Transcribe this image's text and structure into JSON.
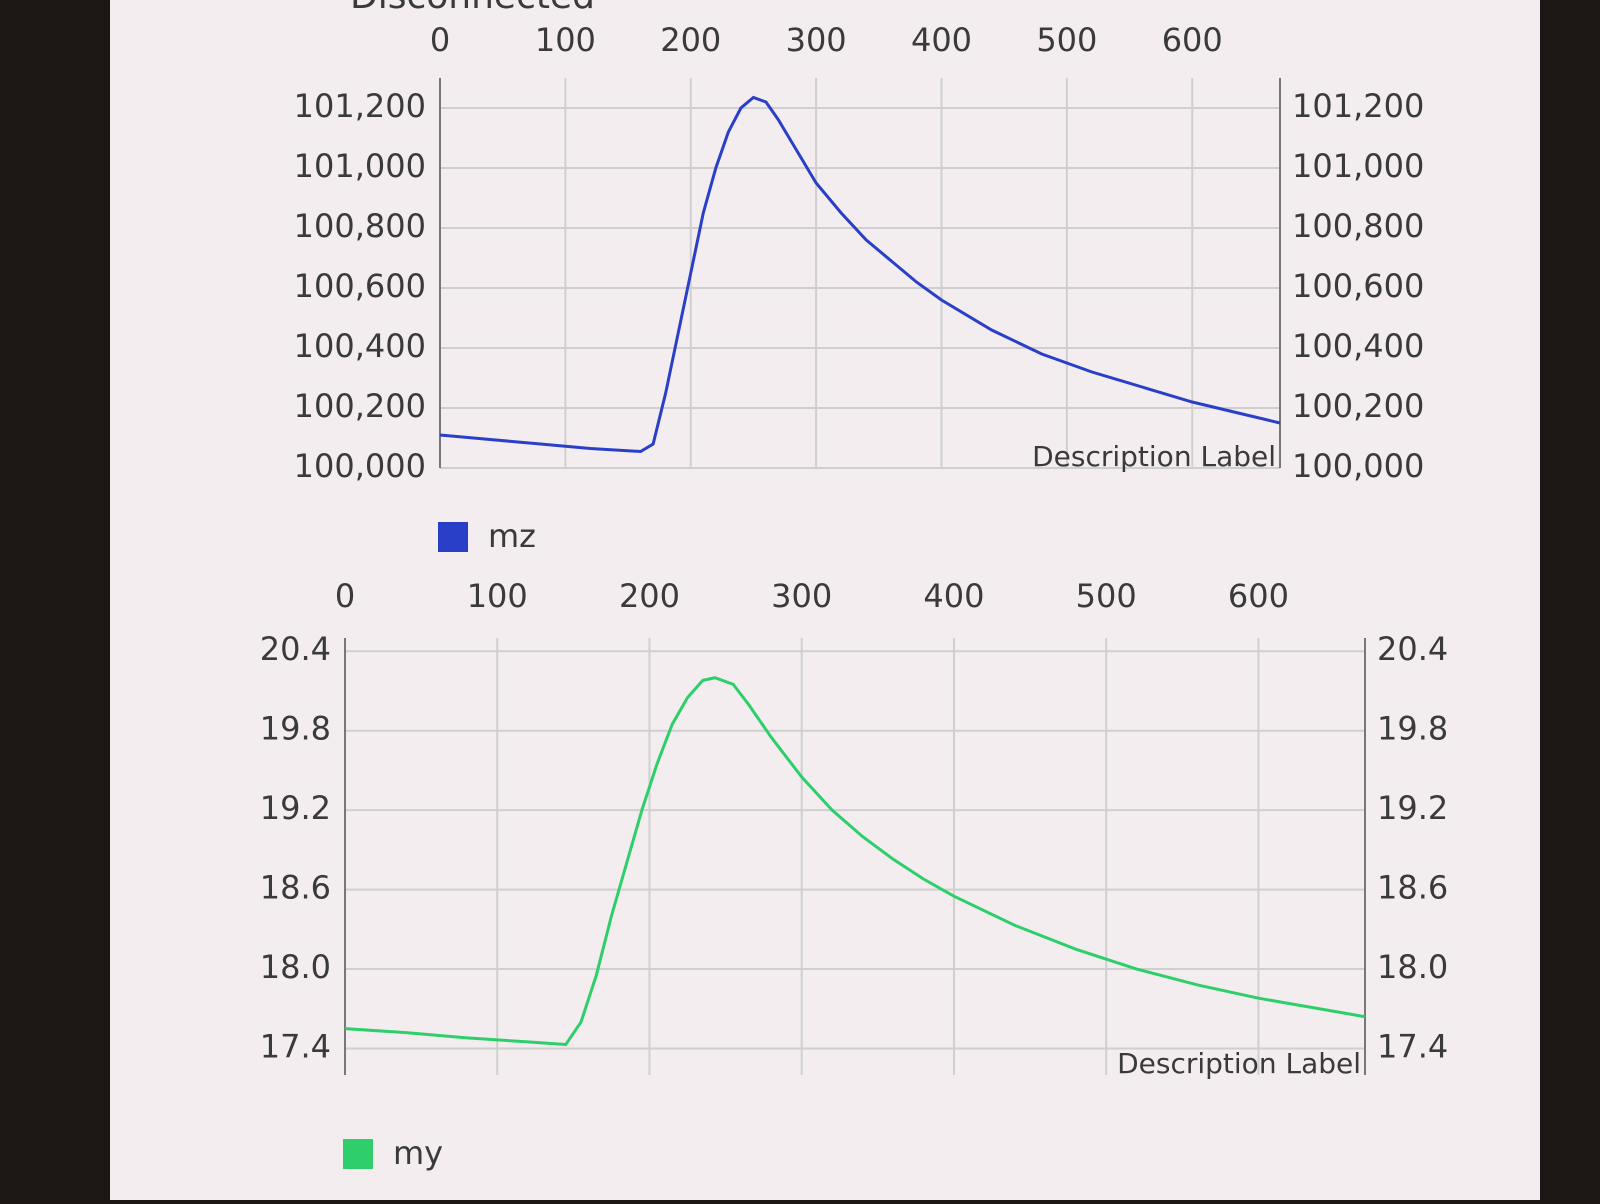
{
  "status": "Disconnected",
  "chart_data": [
    {
      "type": "line",
      "description": "Description Label",
      "x": [
        0,
        40,
        80,
        120,
        160,
        170,
        180,
        190,
        200,
        210,
        220,
        230,
        240,
        250,
        260,
        270,
        280,
        300,
        320,
        340,
        360,
        380,
        400,
        440,
        480,
        520,
        560,
        600,
        640,
        670
      ],
      "series": [
        {
          "name": "mz",
          "color": "#2a3fc8",
          "values": [
            100110,
            100095,
            100080,
            100065,
            100055,
            100080,
            100250,
            100450,
            100650,
            100850,
            101000,
            101120,
            101200,
            101235,
            101220,
            101160,
            101090,
            100950,
            100850,
            100760,
            100690,
            100620,
            100560,
            100460,
            100380,
            100320,
            100270,
            100220,
            100180,
            100150
          ]
        }
      ],
      "xlim": [
        0,
        670
      ],
      "xticks": [
        0,
        100,
        200,
        300,
        400,
        500,
        600
      ],
      "ylim": [
        100000,
        101300
      ],
      "yticks": [
        {
          "value": 100000,
          "label": "100,000"
        },
        {
          "value": 100200,
          "label": "100,200"
        },
        {
          "value": 100400,
          "label": "100,400"
        },
        {
          "value": 100600,
          "label": "100,600"
        },
        {
          "value": 100800,
          "label": "100,800"
        },
        {
          "value": 101000,
          "label": "101,000"
        },
        {
          "value": 101200,
          "label": "101,200"
        }
      ],
      "grid": true
    },
    {
      "type": "line",
      "description": "Description Label",
      "x": [
        0,
        40,
        80,
        120,
        145,
        155,
        165,
        175,
        185,
        195,
        205,
        215,
        225,
        235,
        243,
        255,
        265,
        280,
        300,
        320,
        340,
        360,
        380,
        400,
        440,
        480,
        520,
        560,
        600,
        640,
        670
      ],
      "series": [
        {
          "name": "my",
          "color": "#2ecf6a",
          "values": [
            17.55,
            17.52,
            17.48,
            17.45,
            17.43,
            17.6,
            17.95,
            18.4,
            18.8,
            19.2,
            19.55,
            19.85,
            20.05,
            20.18,
            20.2,
            20.15,
            20.0,
            19.75,
            19.45,
            19.2,
            19.0,
            18.83,
            18.68,
            18.55,
            18.33,
            18.15,
            18.0,
            17.88,
            17.78,
            17.7,
            17.64
          ]
        }
      ],
      "xlim": [
        0,
        670
      ],
      "xticks": [
        0,
        100,
        200,
        300,
        400,
        500,
        600
      ],
      "ylim": [
        17.2,
        20.5
      ],
      "yticks": [
        17.4,
        {
          "value": 18,
          "label": "18.0"
        },
        18.6,
        19.2,
        19.8,
        20.4
      ],
      "grid": true
    }
  ]
}
